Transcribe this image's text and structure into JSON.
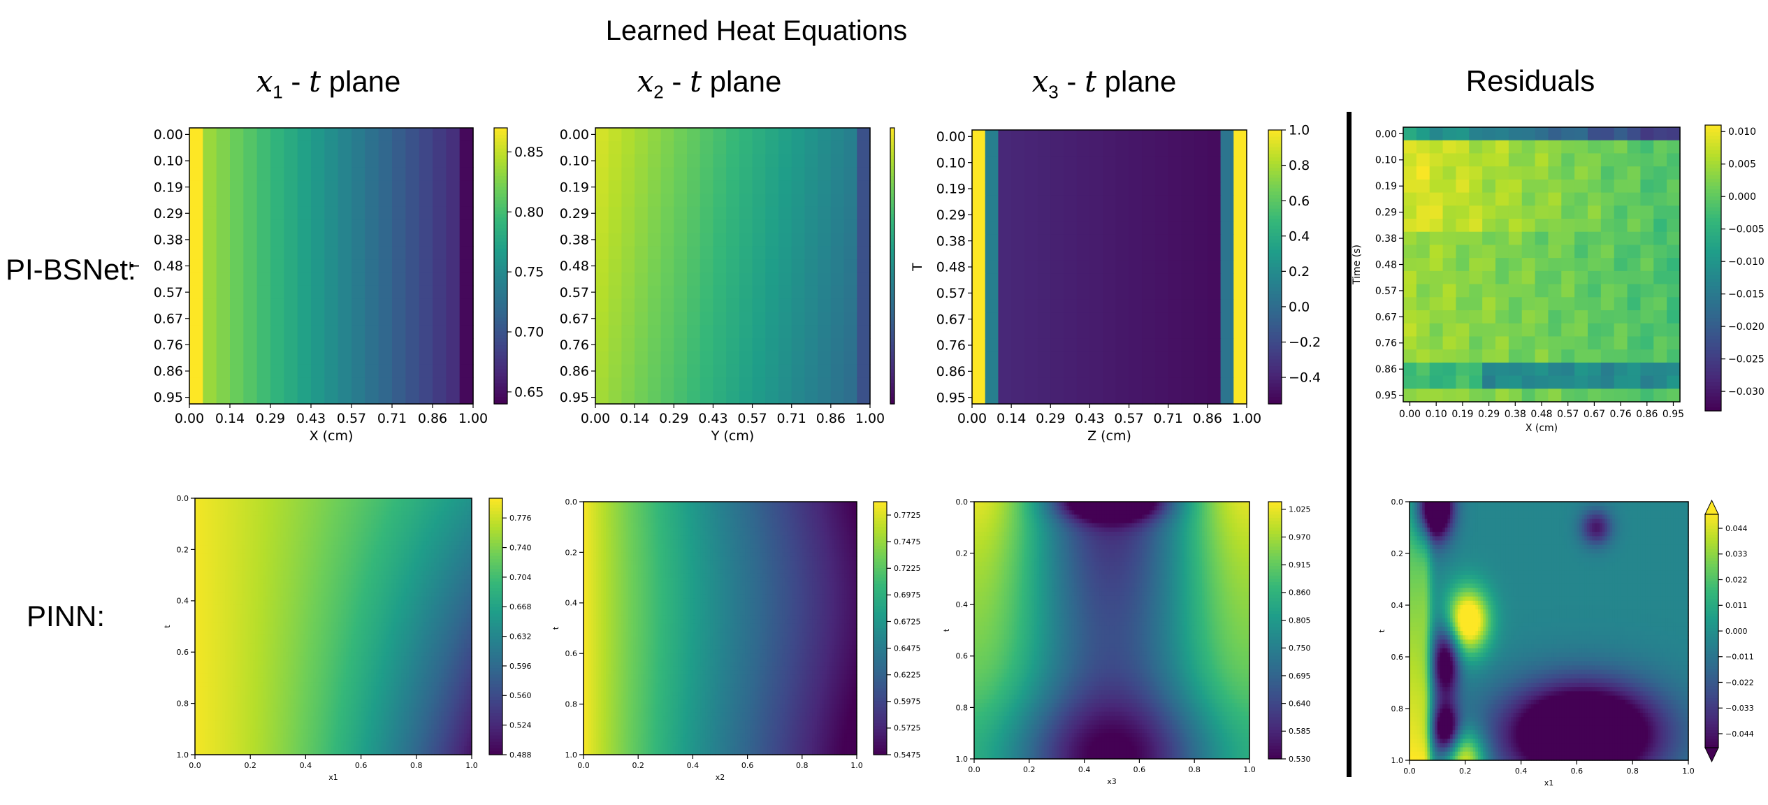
{
  "figure": {
    "title": "Learned Heat Equations",
    "columns": [
      {
        "var": "x",
        "sub": "1",
        "rest": " - ",
        "tvar": "t",
        "tail": " plane"
      },
      {
        "var": "x",
        "sub": "2",
        "rest": " - ",
        "tvar": "t",
        "tail": " plane"
      },
      {
        "var": "x",
        "sub": "3",
        "rest": " - ",
        "tvar": "t",
        "tail": " plane"
      },
      {
        "plain": "Residuals"
      }
    ],
    "rows": [
      "PI-BSNet:",
      "PINN:"
    ]
  },
  "colormap": [
    "#440154",
    "#482878",
    "#3e4989",
    "#31688e",
    "#26828e",
    "#1f9e89",
    "#35b779",
    "#6ece58",
    "#b5de2b",
    "#fde725"
  ],
  "chart_data": [
    {
      "id": "bsnet-x1",
      "type": "heatmap",
      "xlabel": "X (cm)",
      "ylabel": "T",
      "x_ticks": [
        "0.00",
        "0.14",
        "0.29",
        "0.43",
        "0.57",
        "0.71",
        "0.86",
        "1.00"
      ],
      "y_ticks": [
        "0.00",
        "0.10",
        "0.19",
        "0.29",
        "0.38",
        "0.48",
        "0.57",
        "0.67",
        "0.76",
        "0.86",
        "0.95"
      ],
      "grid_cols": 21,
      "grid_rows": 21,
      "field": "x1_bsnet",
      "vmin": 0.64,
      "vmax": 0.87,
      "colorbar_ticks": [
        "0.85",
        "0.80",
        "0.75",
        "0.70",
        "0.65"
      ],
      "colorbar_values": [
        0.85,
        0.8,
        0.75,
        0.7,
        0.65
      ]
    },
    {
      "id": "bsnet-x2",
      "type": "heatmap",
      "xlabel": "Y (cm)",
      "ylabel": "",
      "x_ticks": [
        "0.00",
        "0.14",
        "0.29",
        "0.43",
        "0.57",
        "0.71",
        "0.86",
        "1.00"
      ],
      "y_ticks": [
        "0.00",
        "0.10",
        "0.19",
        "0.29",
        "0.38",
        "0.48",
        "0.57",
        "0.67",
        "0.76",
        "0.86",
        "0.95"
      ],
      "grid_cols": 21,
      "grid_rows": 21,
      "field": "x2_bsnet",
      "vmin": 0.0,
      "vmax": 1.0,
      "colorbar_ticks": [],
      "colorbar_values": []
    },
    {
      "id": "bsnet-x3",
      "type": "heatmap",
      "xlabel": "Z (cm)",
      "ylabel": "T",
      "x_ticks": [
        "0.00",
        "0.14",
        "0.29",
        "0.43",
        "0.57",
        "0.71",
        "0.86",
        "1.00"
      ],
      "y_ticks": [
        "0.00",
        "0.10",
        "0.19",
        "0.29",
        "0.38",
        "0.48",
        "0.57",
        "0.67",
        "0.76",
        "0.86",
        "0.95"
      ],
      "grid_cols": 21,
      "grid_rows": 21,
      "field": "x3_bsnet",
      "vmin": -0.55,
      "vmax": 1.0,
      "colorbar_ticks": [
        "1.0",
        "0.8",
        "0.6",
        "0.4",
        "0.2",
        "0.0",
        "−0.2",
        "−0.4"
      ],
      "colorbar_values": [
        1.0,
        0.8,
        0.6,
        0.4,
        0.2,
        0.0,
        -0.2,
        -0.4
      ]
    },
    {
      "id": "bsnet-residuals",
      "type": "heatmap",
      "xlabel": "X (cm)",
      "ylabel": "Time (s)",
      "x_ticks": [
        "0.00",
        "0.10",
        "0.19",
        "0.29",
        "0.38",
        "0.48",
        "0.57",
        "0.67",
        "0.76",
        "0.86",
        "0.95"
      ],
      "y_ticks": [
        "0.00",
        "0.10",
        "0.19",
        "0.29",
        "0.38",
        "0.48",
        "0.57",
        "0.67",
        "0.76",
        "0.86",
        "0.95"
      ],
      "grid_cols": 21,
      "grid_rows": 21,
      "field": "res_bsnet",
      "vmin": -0.033,
      "vmax": 0.011,
      "colorbar_ticks": [
        "0.010",
        "0.005",
        "0.000",
        "−0.005",
        "−0.010",
        "−0.015",
        "−0.020",
        "−0.025",
        "−0.030"
      ],
      "colorbar_values": [
        0.01,
        0.005,
        0.0,
        -0.005,
        -0.01,
        -0.015,
        -0.02,
        -0.025,
        -0.03
      ]
    },
    {
      "id": "pinn-x1",
      "type": "heatmap",
      "xlabel": "x1",
      "ylabel": "t",
      "x_ticks": [
        "0.0",
        "0.2",
        "0.4",
        "0.6",
        "0.8",
        "1.0"
      ],
      "y_ticks": [
        "0.0",
        "0.2",
        "0.4",
        "0.6",
        "0.8",
        "1.0"
      ],
      "grid_cols": 110,
      "grid_rows": 60,
      "field": "x1_pinn",
      "vmin": 0.488,
      "vmax": 0.8,
      "colorbar_ticks": [
        "0.776",
        "0.740",
        "0.704",
        "0.668",
        "0.632",
        "0.596",
        "0.560",
        "0.524",
        "0.488"
      ],
      "colorbar_values": [
        0.776,
        0.74,
        0.704,
        0.668,
        0.632,
        0.596,
        0.56,
        0.524,
        0.488
      ]
    },
    {
      "id": "pinn-x2",
      "type": "heatmap",
      "xlabel": "x2",
      "ylabel": "t",
      "x_ticks": [
        "0.0",
        "0.2",
        "0.4",
        "0.6",
        "0.8",
        "1.0"
      ],
      "y_ticks": [
        "0.0",
        "0.2",
        "0.4",
        "0.6",
        "0.8",
        "1.0"
      ],
      "grid_cols": 110,
      "grid_rows": 60,
      "field": "x2_pinn",
      "vmin": 0.5475,
      "vmax": 0.785,
      "colorbar_ticks": [
        "0.7725",
        "0.7475",
        "0.7225",
        "0.6975",
        "0.6725",
        "0.6475",
        "0.6225",
        "0.5975",
        "0.5725",
        "0.5475"
      ],
      "colorbar_values": [
        0.7725,
        0.7475,
        0.7225,
        0.6975,
        0.6725,
        0.6475,
        0.6225,
        0.5975,
        0.5725,
        0.5475
      ]
    },
    {
      "id": "pinn-x3",
      "type": "heatmap",
      "xlabel": "x3",
      "ylabel": "t",
      "x_ticks": [
        "0.0",
        "0.2",
        "0.4",
        "0.6",
        "0.8",
        "1.0"
      ],
      "y_ticks": [
        "0.0",
        "0.2",
        "0.4",
        "0.6",
        "0.8",
        "1.0"
      ],
      "grid_cols": 110,
      "grid_rows": 60,
      "field": "x3_pinn",
      "vmin": 0.53,
      "vmax": 1.04,
      "colorbar_ticks": [
        "1.025",
        "0.970",
        "0.915",
        "0.860",
        "0.805",
        "0.750",
        "0.695",
        "0.640",
        "0.585",
        "0.530"
      ],
      "colorbar_values": [
        1.025,
        0.97,
        0.915,
        0.86,
        0.805,
        0.75,
        0.695,
        0.64,
        0.585,
        0.53
      ]
    },
    {
      "id": "pinn-residuals",
      "type": "heatmap",
      "xlabel": "x1",
      "ylabel": "t",
      "x_ticks": [
        "0.0",
        "0.2",
        "0.4",
        "0.6",
        "0.8",
        "1.0"
      ],
      "y_ticks": [
        "0.0",
        "0.2",
        "0.4",
        "0.6",
        "0.8",
        "1.0"
      ],
      "grid_cols": 110,
      "grid_rows": 60,
      "field": "res_pinn",
      "vmin": -0.05,
      "vmax": 0.05,
      "extend": "both",
      "colorbar_ticks": [
        "0.044",
        "0.033",
        "0.022",
        "0.011",
        "0.000",
        "−0.011",
        "−0.022",
        "−0.033",
        "−0.044"
      ],
      "colorbar_values": [
        0.044,
        0.033,
        0.022,
        0.011,
        0.0,
        -0.011,
        -0.022,
        -0.033,
        -0.044
      ]
    }
  ]
}
